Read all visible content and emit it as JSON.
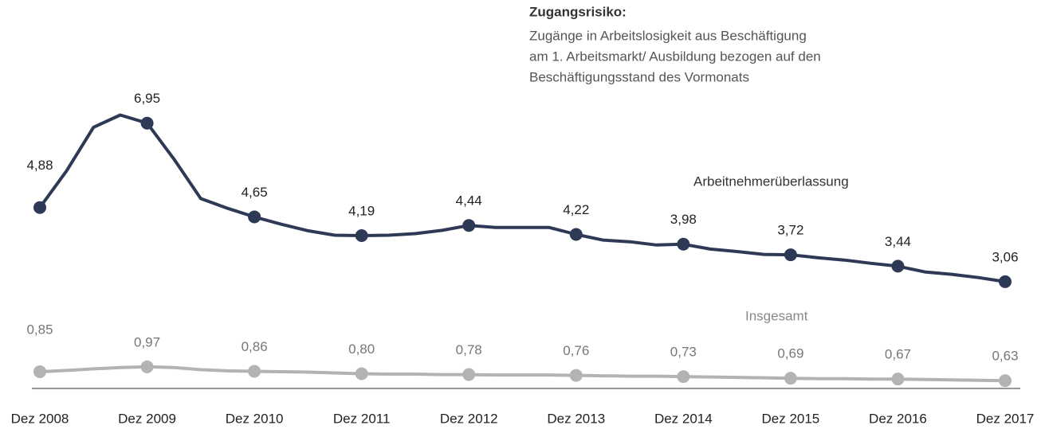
{
  "chart_data": {
    "type": "line",
    "annotation": {
      "title": "Zugangsrisiko:",
      "lines": [
        "Zugänge in Arbeitslosigkeit aus Beschäftigung",
        "am 1. Arbeitsmarkt/ Ausbildung bezogen auf den",
        "Beschäftigungsstand des Vormonats"
      ]
    },
    "categories": [
      "Dez 2008",
      null,
      null,
      null,
      "Dez 2009",
      null,
      null,
      null,
      "Dez 2010",
      null,
      null,
      null,
      "Dez 2011",
      null,
      null,
      null,
      "Dez 2012",
      null,
      null,
      null,
      "Dez 2013",
      null,
      null,
      null,
      "Dez 2014",
      null,
      null,
      null,
      "Dez 2015",
      null,
      null,
      null,
      "Dez 2016",
      null,
      null,
      null,
      "Dez 2017"
    ],
    "series": [
      {
        "name": "Arbeitnehmerüberlassung",
        "color": "#2e3a55",
        "values": [
          4.88,
          5.78,
          6.85,
          7.15,
          6.95,
          6.07,
          5.1,
          4.86,
          4.65,
          4.47,
          4.31,
          4.2,
          4.19,
          4.2,
          4.24,
          4.32,
          4.44,
          4.39,
          4.39,
          4.39,
          4.22,
          4.08,
          4.04,
          3.96,
          3.98,
          3.86,
          3.8,
          3.73,
          3.72,
          3.65,
          3.59,
          3.51,
          3.44,
          3.3,
          3.24,
          3.16,
          3.06
        ],
        "value_labels": [
          "4,88",
          null,
          null,
          null,
          "6,95",
          null,
          null,
          null,
          "4,65",
          null,
          null,
          null,
          "4,19",
          null,
          null,
          null,
          "4,44",
          null,
          null,
          null,
          "4,22",
          null,
          null,
          null,
          "3,98",
          null,
          null,
          null,
          "3,72",
          null,
          null,
          null,
          "3,44",
          null,
          null,
          null,
          "3,06"
        ]
      },
      {
        "name": "Insgesamt",
        "color": "#b3b3b3",
        "values": [
          0.85,
          0.88,
          0.92,
          0.95,
          0.97,
          0.95,
          0.9,
          0.87,
          0.86,
          0.85,
          0.84,
          0.82,
          0.8,
          0.79,
          0.79,
          0.78,
          0.78,
          0.77,
          0.77,
          0.77,
          0.76,
          0.75,
          0.74,
          0.74,
          0.73,
          0.72,
          0.71,
          0.7,
          0.69,
          0.68,
          0.68,
          0.67,
          0.67,
          0.66,
          0.65,
          0.64,
          0.63
        ],
        "value_labels": [
          "0,85",
          null,
          null,
          null,
          "0,97",
          null,
          null,
          null,
          "0,86",
          null,
          null,
          null,
          "0,80",
          null,
          null,
          null,
          "0,78",
          null,
          null,
          null,
          "0,76",
          null,
          null,
          null,
          "0,73",
          null,
          null,
          null,
          "0,69",
          null,
          null,
          null,
          "0,67",
          null,
          null,
          null,
          "0,63"
        ]
      }
    ],
    "ylim": [
      0.4,
      8
    ]
  }
}
